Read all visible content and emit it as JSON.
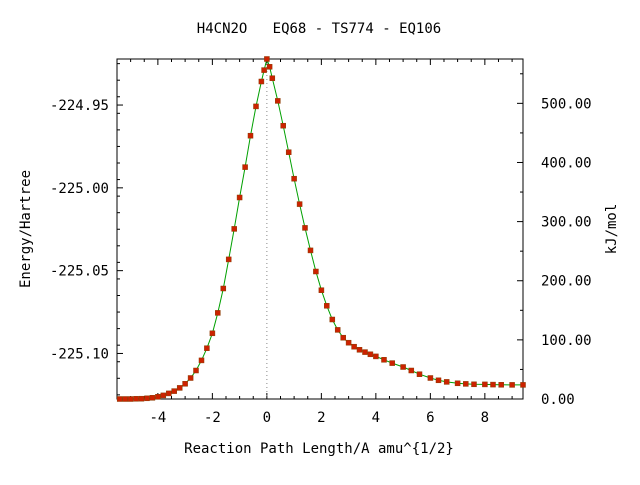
{
  "chart_data": {
    "type": "line",
    "title": "H4CN2O   EQ68 - TS774 - EQ106",
    "xlabel": "Reaction Path Length/A amu^{1/2}",
    "ylabel_left": "Energy/Hartree",
    "ylabel_right": "kJ/mol",
    "xlim": [
      -5.5,
      9.4
    ],
    "ylim_left": [
      -225.1275,
      -224.9222
    ],
    "ylim_right": [
      0,
      575
    ],
    "x_ticks": [
      -4,
      -2,
      0,
      2,
      4,
      6,
      8
    ],
    "x_tick_labels": [
      "-4",
      "-2",
      "0",
      "2",
      "4",
      "6",
      "8"
    ],
    "y_left_ticks": [
      -224.95,
      -225.0,
      -225.05,
      -225.1
    ],
    "y_left_tick_labels": [
      "-224.95",
      "-225.00",
      "-225.05",
      "-225.10"
    ],
    "y_right_ticks": [
      500,
      400,
      300,
      200,
      100,
      0
    ],
    "y_right_tick_labels": [
      "500.00",
      "400.00",
      "300.00",
      "200.00",
      "100.00",
      "0.00"
    ],
    "ts_x": 0,
    "line_color": "#00a000",
    "marker_color": "#cc2200",
    "ts_line_color": "#888888",
    "series": [
      {
        "x": [
          -5.4,
          -5.2,
          -5.0,
          -4.8,
          -4.6,
          -4.4,
          -4.2,
          -4.0,
          -3.8,
          -3.6,
          -3.4,
          -3.2,
          -3.0,
          -2.8,
          -2.6,
          -2.4,
          -2.2,
          -2.0,
          -1.8,
          -1.6,
          -1.4,
          -1.2,
          -1.0,
          -0.8,
          -0.6,
          -0.4,
          -0.2,
          -0.1,
          0.0,
          0.1,
          0.2,
          0.4,
          0.6,
          0.8,
          1.0,
          1.2,
          1.4,
          1.6,
          1.8,
          2.0,
          2.2,
          2.4,
          2.6,
          2.8,
          3.0,
          3.2,
          3.4,
          3.6,
          3.8,
          4.0,
          4.3,
          4.6,
          5.0,
          5.3,
          5.6,
          6.0,
          6.3,
          6.6,
          7.0,
          7.3,
          7.6,
          8.0,
          8.3,
          8.6,
          9.0,
          9.4
        ],
        "y": [
          -225.1275,
          -225.1275,
          -225.1275,
          -225.1274,
          -225.1273,
          -225.1271,
          -225.1268,
          -225.1262,
          -225.1253,
          -225.1241,
          -225.1227,
          -225.1208,
          -225.1183,
          -225.1148,
          -225.1103,
          -225.1042,
          -225.0968,
          -225.0878,
          -225.0755,
          -225.0608,
          -225.0432,
          -225.0248,
          -225.0058,
          -224.9875,
          -224.9685,
          -224.9508,
          -224.9358,
          -224.9289,
          -224.9222,
          -224.9269,
          -224.9338,
          -224.9475,
          -224.9625,
          -224.9785,
          -224.9945,
          -225.0098,
          -225.0242,
          -225.0378,
          -225.0505,
          -225.0618,
          -225.0712,
          -225.0795,
          -225.0858,
          -225.0905,
          -225.0935,
          -225.0959,
          -225.0978,
          -225.0992,
          -225.1005,
          -225.1018,
          -225.1038,
          -225.1058,
          -225.1082,
          -225.1103,
          -225.1125,
          -225.1148,
          -225.1162,
          -225.1172,
          -225.118,
          -225.1184,
          -225.1186,
          -225.1187,
          -225.1188,
          -225.1189,
          -225.119,
          -225.119
        ]
      }
    ]
  }
}
